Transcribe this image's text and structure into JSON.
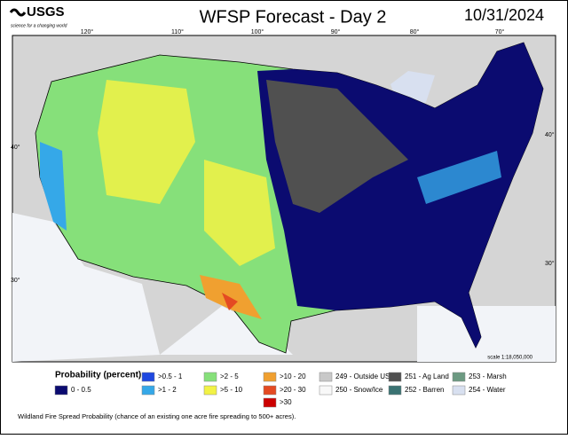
{
  "header": {
    "logo": "USGS",
    "tagline": "science for a changing world",
    "title": "WFSP Forecast - Day 2",
    "date": "10/31/2024"
  },
  "map": {
    "longitude_labels": [
      "120°",
      "110°",
      "100°",
      "90°",
      "80°",
      "70°"
    ],
    "latitude_labels_left": [
      "40°",
      "30°"
    ],
    "latitude_labels_right": [
      "40°",
      "30°"
    ],
    "scale": "scale 1:18,050,000"
  },
  "legend": {
    "title": "Probability (percent)",
    "items": [
      {
        "label": "0 - 0.5",
        "color": "#0b0b70"
      },
      {
        "label": ">0.5 - 1",
        "color": "#1f48e0"
      },
      {
        "label": ">1 - 2",
        "color": "#35a8e8"
      },
      {
        "label": ">2 - 5",
        "color": "#86e07a"
      },
      {
        "label": ">5 - 10",
        "color": "#f2f245"
      },
      {
        "label": ">10 - 20",
        "color": "#f0a030"
      },
      {
        "label": ">20 - 30",
        "color": "#e44a22"
      },
      {
        "label": ">30",
        "color": "#cc0000"
      },
      {
        "label": "249 - Outside US",
        "color": "#c8c8c8"
      },
      {
        "label": "250 - Snow/Ice",
        "color": "#f8f8f8"
      },
      {
        "label": "251 - Ag Land",
        "color": "#505050"
      },
      {
        "label": "252 - Barren",
        "color": "#3a7272"
      },
      {
        "label": "253 - Marsh",
        "color": "#6c9a82"
      },
      {
        "label": "254 - Water",
        "color": "#d8e0f0"
      }
    ]
  },
  "footer": "Wildland Fire Spread Probability (chance of an existing one acre fire spreading to 500+ acres)."
}
